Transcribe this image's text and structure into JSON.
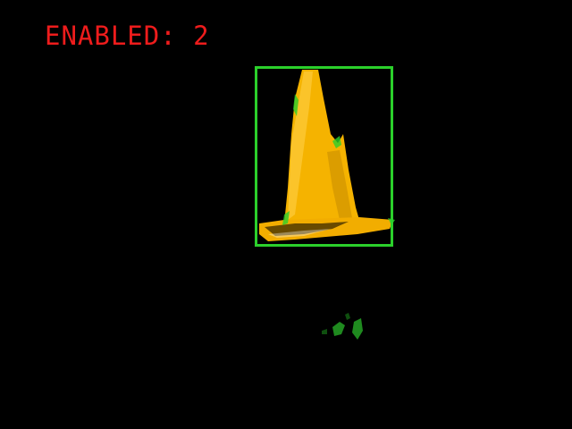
{
  "overlay": {
    "status_label": "ENABLED: 2",
    "status_color": "#ee1c1c"
  },
  "detection": {
    "object_icon": "traffic-cone-icon",
    "box_color": "#2bd02b",
    "cone_color": "#f5b300"
  },
  "noise": {
    "icon": "noise-blob-icon",
    "color": "#1f8a1f"
  }
}
